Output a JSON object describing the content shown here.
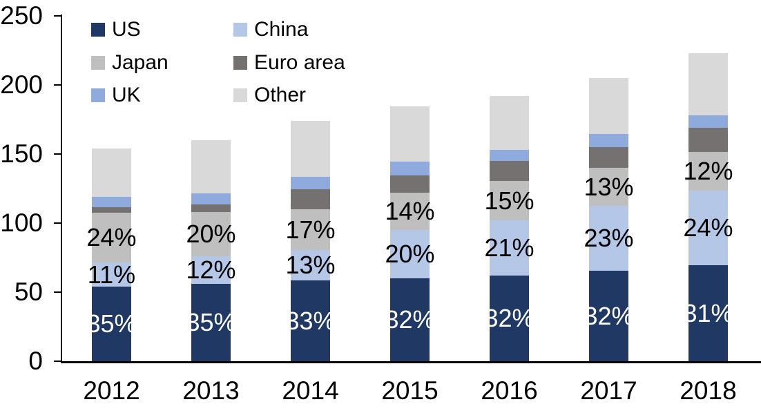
{
  "chart_data": {
    "type": "bar",
    "stacked": true,
    "categories": [
      "2012",
      "2013",
      "2014",
      "2015",
      "2016",
      "2017",
      "2018"
    ],
    "series": [
      {
        "name": "US",
        "color": "#1F3864",
        "values": [
          54,
          56,
          58.5,
          60,
          62,
          65.5,
          69.5
        ],
        "labels": [
          "35%",
          "35%",
          "33%",
          "32%",
          "32%",
          "32%",
          "31%"
        ],
        "label_color": "#FFFFFF"
      },
      {
        "name": "China",
        "color": "#B4C7E7",
        "values": [
          17.5,
          20,
          22,
          35,
          40,
          47,
          54
        ],
        "labels": [
          "11%",
          "12%",
          "13%",
          "20%",
          "21%",
          "23%",
          "24%"
        ],
        "label_color": "#000000"
      },
      {
        "name": "Japan",
        "color": "#BFBFBF",
        "values": [
          36,
          32,
          29.5,
          27,
          28.5,
          27.5,
          28
        ],
        "labels": [
          "24%",
          "20%",
          "17%",
          "14%",
          "15%",
          "13%",
          "12%"
        ],
        "label_color": "#000000"
      },
      {
        "name": "Euro area",
        "color": "#767171",
        "values": [
          4,
          5.5,
          14.5,
          12.5,
          14.5,
          15,
          17.5
        ],
        "labels": null,
        "label_color": null
      },
      {
        "name": "UK",
        "color": "#8FAADC",
        "values": [
          7.5,
          8,
          9,
          10,
          8,
          9.5,
          9
        ],
        "labels": null,
        "label_color": null
      },
      {
        "name": "Other",
        "color": "#D9D9D9",
        "values": [
          35,
          38.5,
          40.5,
          40,
          39,
          40.5,
          45
        ],
        "labels": null,
        "label_color": null
      }
    ],
    "totals": [
      154,
      160,
      174,
      184.5,
      192,
      205,
      223
    ],
    "y_axis": {
      "min": 0,
      "max": 250,
      "tick_step": 50,
      "ticks": [
        0,
        50,
        100,
        150,
        200,
        250
      ],
      "tick_labels": [
        "0",
        "50",
        "100",
        "150",
        "200",
        "250"
      ]
    },
    "grid": false,
    "legend": {
      "position": "top-left",
      "columns": 2,
      "items": [
        "US",
        "China",
        "Japan",
        "Euro area",
        "UK",
        "Other"
      ]
    },
    "axis_color": "#000000",
    "background_color": "#FFFFFF"
  }
}
